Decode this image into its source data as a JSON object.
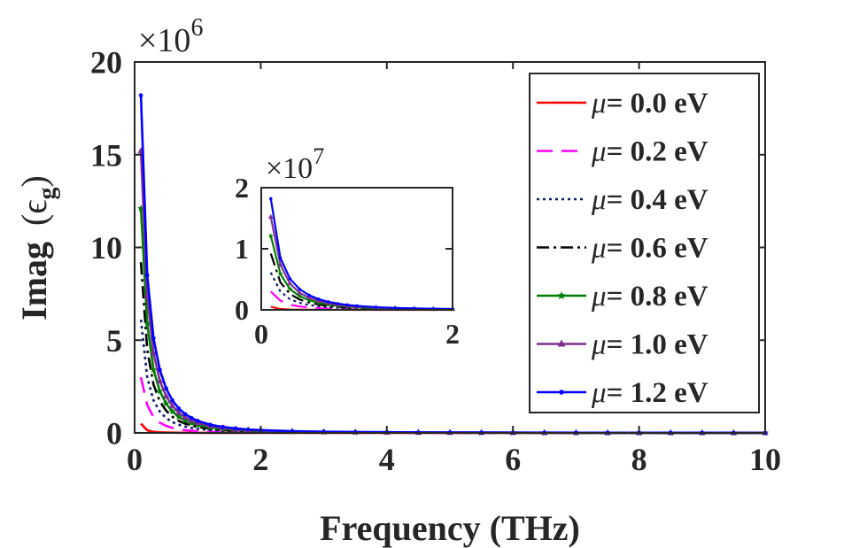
{
  "chart_data": {
    "type": "line",
    "title": "",
    "xlabel": "Frequency (THz)",
    "ylabel_main": "Imag",
    "ylabel_symbol": "(ϵ",
    "ylabel_subscript": "g",
    "ylabel_close": ")",
    "xlim": [
      0,
      10
    ],
    "ylim": [
      0,
      20
    ],
    "xticks": [
      "0",
      "2",
      "4",
      "6",
      "8",
      "10"
    ],
    "yticks": [
      "0",
      "5",
      "10",
      "15",
      "20"
    ],
    "y_exponent_base": "×10",
    "y_exponent_power": "6",
    "legend_position": "top-right",
    "grid": false,
    "x": [
      0.1,
      0.2,
      0.3,
      0.4,
      0.5,
      0.6,
      0.7,
      0.8,
      0.9,
      1.0,
      1.2,
      1.4,
      1.6,
      1.8,
      2.0,
      2.5,
      3.0,
      3.5,
      4.0,
      4.5,
      5.0,
      5.5,
      6.0,
      6.5,
      7.0,
      7.5,
      8.0,
      8.5,
      9.0,
      9.5,
      10.0
    ],
    "series": [
      {
        "name": "μ= 0.0 eV",
        "legend_prefix": "μ",
        "legend_text": "= 0.0 eV",
        "color": "#ff0000",
        "dash": "",
        "marker": "none",
        "values": [
          0.5,
          0.14,
          0.06,
          0.035,
          0.022,
          0.015,
          0.011,
          0.008,
          0.006,
          0.005,
          0.0035,
          0.0025,
          0.002,
          0.0015,
          0.0012,
          0.0008,
          0.0005,
          0.0004,
          0.0003,
          0.0002,
          0.0002,
          0.0001,
          0.0001,
          0.0001,
          0.0001,
          0.0001,
          0.0001,
          0.0001,
          0.0,
          0.0,
          0.0
        ]
      },
      {
        "name": "μ= 0.2 eV",
        "legend_prefix": "μ",
        "legend_text": "= 0.2 eV",
        "color": "#ff00ff",
        "dash": "18 10",
        "marker": "none",
        "values": [
          3.0,
          1.5,
          0.85,
          0.55,
          0.38,
          0.27,
          0.2,
          0.15,
          0.12,
          0.095,
          0.065,
          0.047,
          0.036,
          0.028,
          0.023,
          0.014,
          0.01,
          0.0075,
          0.0058,
          0.0046,
          0.0037,
          0.0031,
          0.0026,
          0.0022,
          0.0019,
          0.0017,
          0.0015,
          0.0013,
          0.0012,
          0.0011,
          0.001
        ]
      },
      {
        "name": "μ= 0.4 eV",
        "legend_prefix": "μ",
        "legend_text": "= 0.4 eV",
        "color": "#0a1a6e",
        "dash": "3 4",
        "marker": "none",
        "values": [
          6.1,
          3.0,
          1.75,
          1.15,
          0.8,
          0.58,
          0.44,
          0.34,
          0.27,
          0.22,
          0.15,
          0.11,
          0.085,
          0.067,
          0.054,
          0.034,
          0.024,
          0.018,
          0.014,
          0.011,
          0.009,
          0.0075,
          0.0064,
          0.0055,
          0.0048,
          0.0042,
          0.0038,
          0.0034,
          0.003,
          0.0028,
          0.0025
        ]
      },
      {
        "name": "μ= 0.6 eV",
        "legend_prefix": "μ",
        "legend_text": "= 0.6 eV",
        "color": "#000000",
        "dash": "14 5 3 5",
        "marker": "none",
        "values": [
          9.2,
          4.5,
          2.6,
          1.7,
          1.2,
          0.87,
          0.65,
          0.5,
          0.4,
          0.32,
          0.22,
          0.16,
          0.12,
          0.095,
          0.077,
          0.049,
          0.034,
          0.025,
          0.019,
          0.015,
          0.012,
          0.01,
          0.0087,
          0.0074,
          0.0064,
          0.0056,
          0.0049,
          0.0044,
          0.0039,
          0.0035,
          0.0032
        ]
      },
      {
        "name": "μ= 0.8 eV",
        "legend_prefix": "μ",
        "legend_text": "= 0.8 eV",
        "color": "#007f00",
        "dash": "",
        "marker": "star",
        "values": [
          12.1,
          5.9,
          3.4,
          2.25,
          1.58,
          1.15,
          0.87,
          0.67,
          0.53,
          0.43,
          0.29,
          0.21,
          0.16,
          0.125,
          0.1,
          0.064,
          0.044,
          0.032,
          0.025,
          0.02,
          0.016,
          0.013,
          0.011,
          0.0095,
          0.0082,
          0.0072,
          0.0063,
          0.0056,
          0.005,
          0.0045,
          0.0041
        ]
      },
      {
        "name": "μ= 1.0 eV",
        "legend_prefix": "μ",
        "legend_text": "= 1.0 eV",
        "color": "#7e2f8e",
        "dash": "",
        "marker": "triangle",
        "values": [
          15.2,
          7.4,
          4.3,
          2.8,
          1.98,
          1.45,
          1.09,
          0.84,
          0.67,
          0.54,
          0.37,
          0.27,
          0.2,
          0.155,
          0.125,
          0.08,
          0.055,
          0.04,
          0.031,
          0.024,
          0.02,
          0.016,
          0.014,
          0.012,
          0.01,
          0.009,
          0.0078,
          0.007,
          0.0062,
          0.0056,
          0.005
        ]
      },
      {
        "name": "μ= 1.2 eV",
        "legend_prefix": "μ",
        "legend_text": "= 1.2 eV",
        "color": "#0000ff",
        "dash": "",
        "marker": "dot",
        "values": [
          18.2,
          8.5,
          5.1,
          3.4,
          2.4,
          1.75,
          1.32,
          1.02,
          0.81,
          0.65,
          0.44,
          0.32,
          0.24,
          0.185,
          0.15,
          0.095,
          0.066,
          0.048,
          0.037,
          0.029,
          0.024,
          0.02,
          0.017,
          0.014,
          0.012,
          0.011,
          0.0094,
          0.0084,
          0.0075,
          0.0067,
          0.006
        ]
      }
    ],
    "inset": {
      "xlim": [
        0,
        2
      ],
      "ylim": [
        0,
        2
      ],
      "xticks": [
        "0",
        "2"
      ],
      "yticks": [
        "0",
        "1",
        "2"
      ],
      "y_exponent_base": "×10",
      "y_exponent_power": "7",
      "x_max": 2.0
    }
  }
}
